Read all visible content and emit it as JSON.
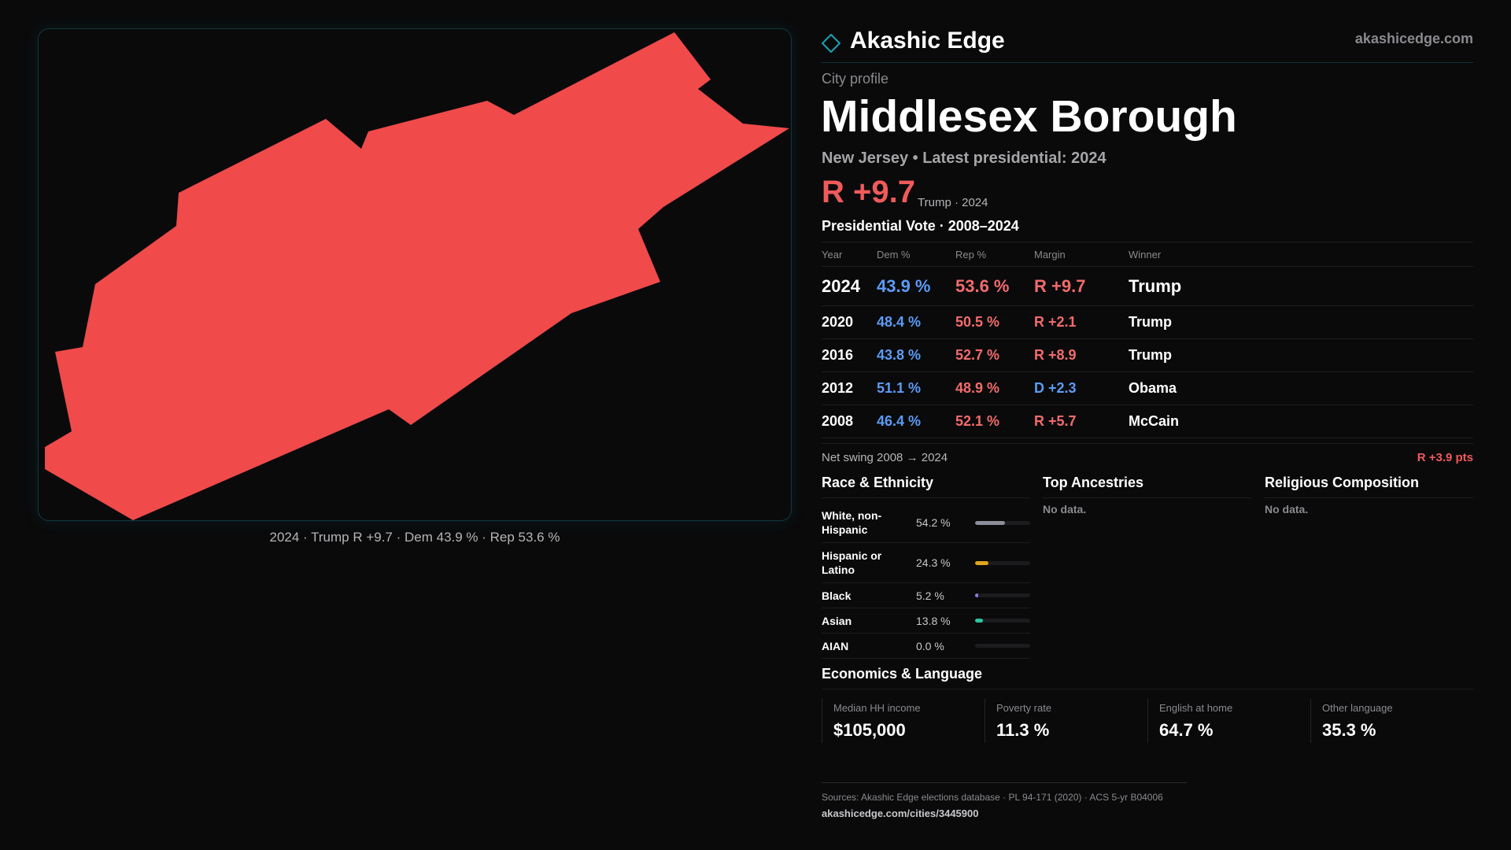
{
  "brand": {
    "name": "Akashic Edge",
    "url": "akashicedge.com",
    "logo_icon": "diamond-outline-icon",
    "accent": "#1aa3b5"
  },
  "profile": {
    "eyebrow": "City profile",
    "city": "Middlesex Borough",
    "subtitle": "New Jersey • Latest presidential: 2024",
    "margin": "R +9.7",
    "margin_note": "Trump · 2024"
  },
  "map": {
    "fill": "#f04a4a",
    "caption": "2024 · Trump R +9.7 · Dem 43.9 % · Rep 53.6 %"
  },
  "presidential": {
    "title": "Presidential Vote · 2008–2024",
    "headers": {
      "year": "Year",
      "dem": "Dem %",
      "rep": "Rep %",
      "margin": "Margin",
      "winner": "Winner"
    },
    "rows": [
      {
        "year": "2024",
        "dem": "43.9 %",
        "rep": "53.6 %",
        "margin": "R +9.7",
        "party": "rep",
        "winner": "Trump"
      },
      {
        "year": "2020",
        "dem": "48.4 %",
        "rep": "50.5 %",
        "margin": "R +2.1",
        "party": "rep",
        "winner": "Trump"
      },
      {
        "year": "2016",
        "dem": "43.8 %",
        "rep": "52.7 %",
        "margin": "R +8.9",
        "party": "rep",
        "winner": "Trump"
      },
      {
        "year": "2012",
        "dem": "51.1 %",
        "rep": "48.9 %",
        "margin": "D +2.3",
        "party": "dem",
        "winner": "Obama"
      },
      {
        "year": "2008",
        "dem": "46.4 %",
        "rep": "52.1 %",
        "margin": "R +5.7",
        "party": "rep",
        "winner": "McCain"
      }
    ],
    "swing_label": "Net swing 2008 → 2024",
    "swing_value": "R +3.9 pts",
    "dem_color": "#5b9cf5",
    "rep_color": "#f26b6b"
  },
  "race": {
    "title": "Race & Ethnicity",
    "rows": [
      {
        "label": "White, non-Hispanic",
        "pct": "54.2 %",
        "share": 0.542,
        "color": "#8c8f99"
      },
      {
        "label": "Hispanic or Latino",
        "pct": "24.3 %",
        "share": 0.243,
        "color": "#e0a51e"
      },
      {
        "label": "Black",
        "pct": "5.2 %",
        "share": 0.052,
        "color": "#8a7fe0"
      },
      {
        "label": "Asian",
        "pct": "13.8 %",
        "share": 0.138,
        "color": "#2ec4a0"
      },
      {
        "label": "AIAN",
        "pct": "0.0 %",
        "share": 0.0,
        "color": "#8c8f99"
      }
    ]
  },
  "ancestries": {
    "title": "Top Ancestries",
    "empty": "No data."
  },
  "religion": {
    "title": "Religious Composition",
    "empty": "No data."
  },
  "economics": {
    "title": "Economics & Language",
    "stats": [
      {
        "label": "Median HH income",
        "value": "$105,000"
      },
      {
        "label": "Poverty rate",
        "value": "11.3 %"
      },
      {
        "label": "English at home",
        "value": "64.7 %"
      },
      {
        "label": "Other language",
        "value": "35.3 %"
      }
    ]
  },
  "footer": {
    "sources": "Sources: Akashic Edge elections database · PL 94-171 (2020) · ACS 5-yr B04006",
    "link": "akashicedge.com/cities/3445900"
  }
}
